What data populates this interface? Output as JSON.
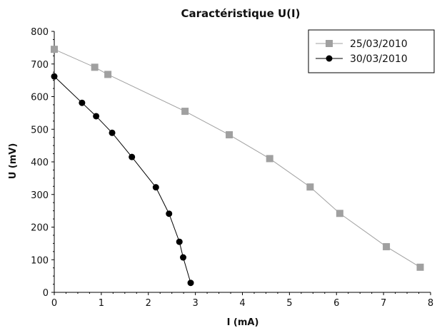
{
  "chart_data": {
    "type": "line",
    "title": "Caractéristique U(I)",
    "xlabel": "I (mA)",
    "ylabel": "U (mV)",
    "xlim": [
      0,
      8
    ],
    "ylim": [
      0,
      800
    ],
    "xticks": [
      "0",
      "1",
      "2",
      "3",
      "4",
      "5",
      "6",
      "7",
      "8"
    ],
    "yticks": [
      "0",
      "100",
      "200",
      "300",
      "400",
      "500",
      "600",
      "700",
      "800"
    ],
    "grid": false,
    "legend_position": "top-right",
    "series": [
      {
        "name": "25/03/2010",
        "color": "#a0a0a0",
        "marker": "square",
        "x": [
          0.0,
          0.86,
          1.14,
          2.78,
          3.72,
          4.58,
          5.44,
          6.07,
          7.06,
          7.78
        ],
        "y": [
          745,
          690,
          668,
          555,
          483,
          410,
          323,
          242,
          140,
          77
        ]
      },
      {
        "name": "30/03/2010",
        "color": "#000000",
        "marker": "circle",
        "x": [
          0.0,
          0.59,
          0.89,
          1.23,
          1.65,
          2.16,
          2.44,
          2.66,
          2.74,
          2.9
        ],
        "y": [
          662,
          581,
          540,
          489,
          415,
          322,
          241,
          155,
          107,
          29
        ]
      }
    ]
  }
}
